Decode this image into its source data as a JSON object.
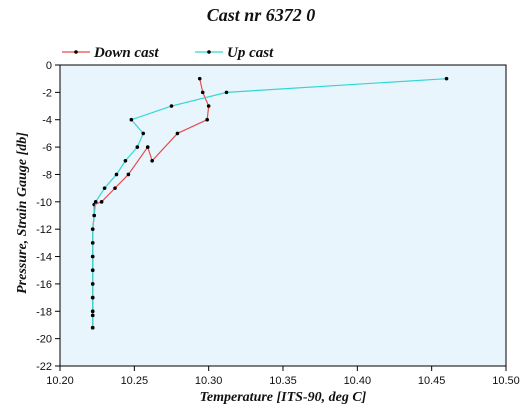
{
  "page": {
    "title": "Cast nr 6372 0"
  },
  "legend": {
    "items": [
      {
        "label": "Down cast",
        "color": "#e74c4c"
      },
      {
        "label": "Up cast",
        "color": "#33d6d6"
      }
    ]
  },
  "colors": {
    "plot_background": "#e9f5fd",
    "axis": "#000000",
    "marker": "#000000"
  },
  "chart_data": {
    "type": "line",
    "title": "Cast nr 6372 0",
    "xlabel": "Temperature [ITS-90, deg C]",
    "ylabel": "Pressure, Strain Gauge [db]",
    "xlim": [
      10.2,
      10.5
    ],
    "ylim": [
      -22,
      0
    ],
    "x_ticks": [
      "10.20",
      "10.25",
      "10.30",
      "10.35",
      "10.40",
      "10.45",
      "10.50"
    ],
    "y_ticks": [
      "0",
      "-2",
      "-4",
      "-6",
      "-8",
      "-10",
      "-12",
      "-14",
      "-16",
      "-18",
      "-20",
      "-22"
    ],
    "grid": false,
    "legend_position": "top-left",
    "series": [
      {
        "name": "Down cast",
        "color": "#e74c4c",
        "x": [
          10.294,
          10.296,
          10.3,
          10.299,
          10.279,
          10.262,
          10.259,
          10.246,
          10.237,
          10.228,
          10.223,
          10.223,
          10.222,
          10.222,
          10.222,
          10.222,
          10.222,
          10.222,
          10.222,
          10.222,
          10.222
        ],
        "y": [
          -1.0,
          -2.0,
          -3.0,
          -4.0,
          -5.0,
          -7.0,
          -6.0,
          -8.0,
          -9.0,
          -10.0,
          -10.2,
          -11.0,
          -12.0,
          -13.0,
          -14.0,
          -15.0,
          -16.0,
          -17.0,
          -18.0,
          -18.3,
          -19.2
        ]
      },
      {
        "name": "Up cast",
        "color": "#33d6d6",
        "x": [
          10.222,
          10.222,
          10.222,
          10.222,
          10.222,
          10.222,
          10.222,
          10.222,
          10.222,
          10.223,
          10.224,
          10.23,
          10.238,
          10.244,
          10.252,
          10.256,
          10.248,
          10.275,
          10.312,
          10.46
        ],
        "y": [
          -19.2,
          -18.3,
          -18.0,
          -17.0,
          -16.0,
          -15.0,
          -14.0,
          -13.0,
          -12.0,
          -11.0,
          -10.0,
          -9.0,
          -8.0,
          -7.0,
          -6.0,
          -5.0,
          -4.0,
          -3.0,
          -2.0,
          -1.0
        ]
      }
    ]
  }
}
